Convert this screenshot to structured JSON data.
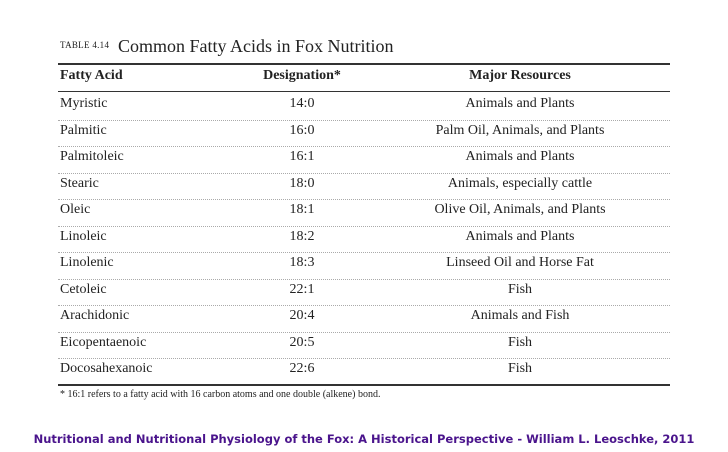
{
  "table": {
    "label": "TABLE 4.14",
    "title": "Common Fatty Acids in Fox Nutrition",
    "headers": [
      "Fatty Acid",
      "Designation*",
      "Major Resources"
    ],
    "rows": [
      [
        "Myristic",
        "14:0",
        "Animals and Plants"
      ],
      [
        "Palmitic",
        "16:0",
        "Palm Oil, Animals, and Plants"
      ],
      [
        "Palmitoleic",
        "16:1",
        "Animals and Plants"
      ],
      [
        "Stearic",
        "18:0",
        "Animals, especially cattle"
      ],
      [
        "Oleic",
        "18:1",
        "Olive Oil, Animals, and Plants"
      ],
      [
        "Linoleic",
        "18:2",
        "Animals and Plants"
      ],
      [
        "Linolenic",
        "18:3",
        "Linseed Oil and Horse Fat"
      ],
      [
        "Cetoleic",
        "22:1",
        "Fish"
      ],
      [
        "Arachidonic",
        "20:4",
        "Animals and Fish"
      ],
      [
        "Eicopentaenoic",
        "20:5",
        "Fish"
      ],
      [
        "Docosahexanoic",
        "22:6",
        "Fish"
      ]
    ],
    "footnote": "* 16:1 refers to a fatty acid with 16 carbon atoms and one double (alkene) bond."
  },
  "caption": "Nutritional and Nutritional Physiology of the Fox: A Historical Perspective - William L. Leoschke, 2011"
}
